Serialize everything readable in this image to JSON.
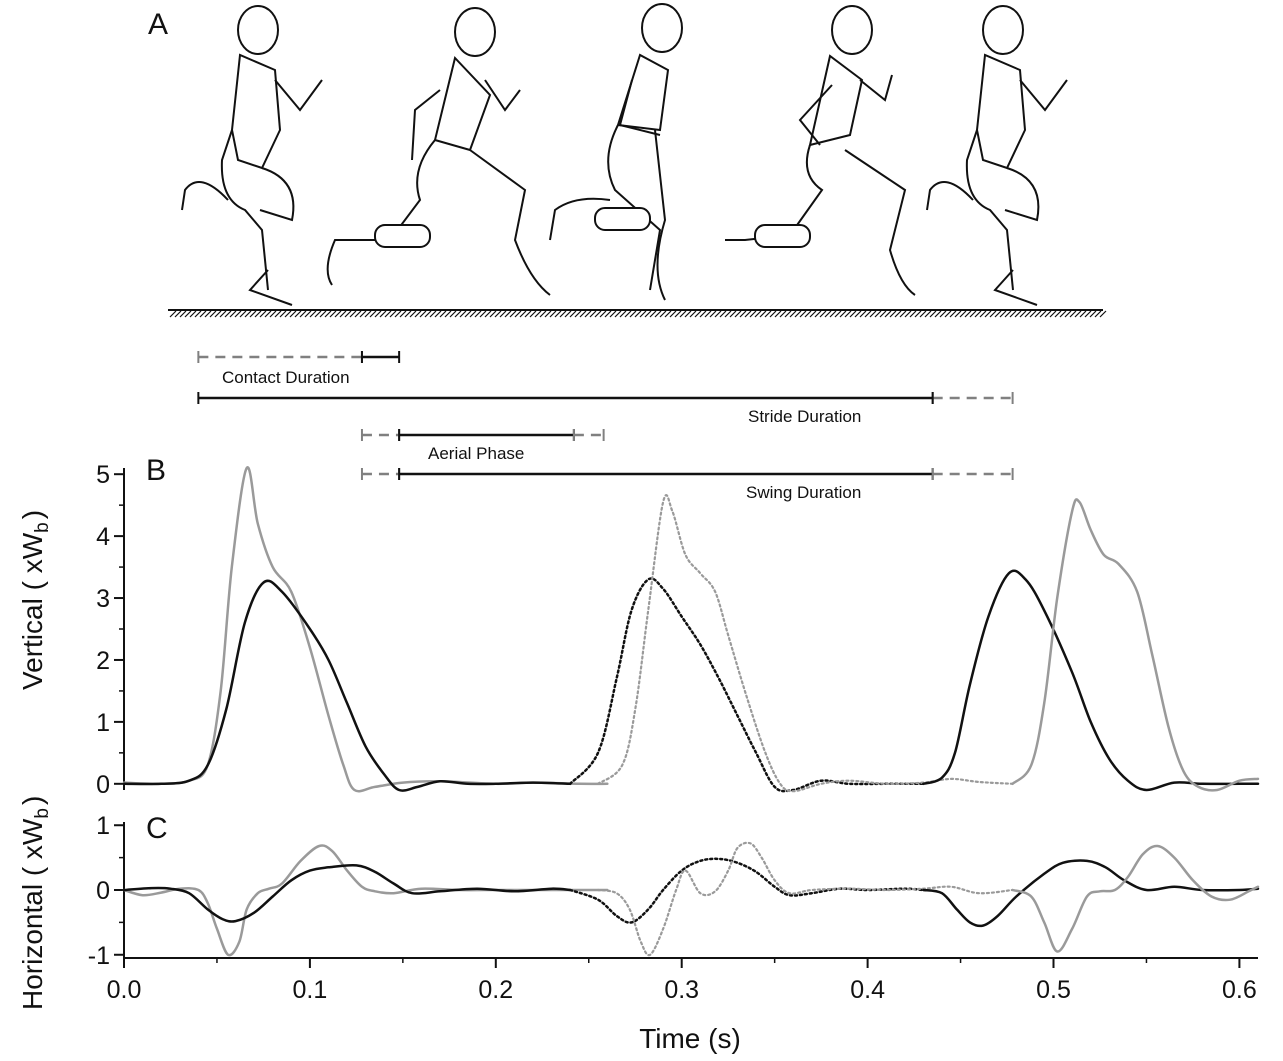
{
  "panel_labels": {
    "a": "A",
    "b": "B",
    "c": "C"
  },
  "colors": {
    "black": "#111111",
    "gray": "#9a9a9a",
    "dash_gray": "#808080"
  },
  "timing_bars": {
    "contact_label": "Contact Duration",
    "stride_label": "Stride Duration",
    "aerial_label": "Aerial Phase",
    "swing_label": "Swing Duration",
    "bars": [
      {
        "label": "Contact Duration",
        "dashed": [
          0.04,
          0.128
        ],
        "solid": [
          0.128,
          0.148
        ]
      },
      {
        "label": "Stride Duration",
        "solid": [
          0.04,
          0.435
        ],
        "dashed": [
          0.435,
          0.478
        ]
      },
      {
        "label": "Aerial Phase",
        "dashed": [
          0.128,
          0.148
        ],
        "solid": [
          0.148,
          0.242
        ],
        "dashed2": [
          0.242,
          0.258
        ]
      },
      {
        "label": "Swing Duration",
        "dashed": [
          0.128,
          0.148
        ],
        "solid": [
          0.148,
          0.435
        ],
        "dashed2": [
          0.435,
          0.478
        ]
      }
    ]
  },
  "chart_data": [
    {
      "type": "line",
      "panel": "B",
      "ylabel_main": "Vertical ( xW",
      "ylabel_sub": "b",
      "ylabel_close": ")",
      "xlim": [
        0.0,
        0.61
      ],
      "ylim": [
        -0.1,
        5.1
      ],
      "yticks": [
        0,
        1,
        2,
        3,
        4,
        5
      ],
      "series": [
        {
          "style": "gray-solid",
          "points": [
            [
              0.0,
              0.02
            ],
            [
              0.02,
              0.0
            ],
            [
              0.035,
              0.05
            ],
            [
              0.045,
              0.3
            ],
            [
              0.052,
              1.5
            ],
            [
              0.058,
              3.5
            ],
            [
              0.066,
              5.1
            ],
            [
              0.072,
              4.2
            ],
            [
              0.08,
              3.5
            ],
            [
              0.09,
              3.1
            ],
            [
              0.1,
              2.2
            ],
            [
              0.11,
              1.1
            ],
            [
              0.118,
              0.3
            ],
            [
              0.124,
              -0.1
            ],
            [
              0.135,
              -0.05
            ],
            [
              0.15,
              0.02
            ],
            [
              0.17,
              0.04
            ],
            [
              0.2,
              0.0
            ],
            [
              0.22,
              0.02
            ],
            [
              0.245,
              0.0
            ],
            [
              0.26,
              0.0
            ]
          ]
        },
        {
          "style": "black-solid",
          "points": [
            [
              0.0,
              0.0
            ],
            [
              0.02,
              0.0
            ],
            [
              0.035,
              0.05
            ],
            [
              0.045,
              0.3
            ],
            [
              0.055,
              1.2
            ],
            [
              0.065,
              2.6
            ],
            [
              0.075,
              3.25
            ],
            [
              0.085,
              3.1
            ],
            [
              0.1,
              2.5
            ],
            [
              0.11,
              2.0
            ],
            [
              0.12,
              1.3
            ],
            [
              0.13,
              0.6
            ],
            [
              0.14,
              0.15
            ],
            [
              0.148,
              -0.1
            ],
            [
              0.158,
              -0.05
            ],
            [
              0.17,
              0.04
            ],
            [
              0.185,
              0.0
            ],
            [
              0.2,
              0.0
            ],
            [
              0.22,
              0.02
            ],
            [
              0.24,
              0.0
            ]
          ]
        },
        {
          "style": "black-dotted",
          "points": [
            [
              0.24,
              0.0
            ],
            [
              0.255,
              0.5
            ],
            [
              0.265,
              1.7
            ],
            [
              0.273,
              2.8
            ],
            [
              0.282,
              3.3
            ],
            [
              0.29,
              3.15
            ],
            [
              0.3,
              2.7
            ],
            [
              0.31,
              2.25
            ],
            [
              0.32,
              1.7
            ],
            [
              0.33,
              1.1
            ],
            [
              0.34,
              0.5
            ],
            [
              0.35,
              -0.05
            ],
            [
              0.36,
              -0.1
            ],
            [
              0.375,
              0.05
            ],
            [
              0.39,
              0.0
            ],
            [
              0.41,
              0.0
            ],
            [
              0.42,
              0.0
            ],
            [
              0.43,
              0.0
            ]
          ]
        },
        {
          "style": "gray-dotted",
          "points": [
            [
              0.255,
              0.0
            ],
            [
              0.268,
              0.3
            ],
            [
              0.275,
              1.2
            ],
            [
              0.282,
              2.8
            ],
            [
              0.29,
              4.55
            ],
            [
              0.295,
              4.4
            ],
            [
              0.302,
              3.7
            ],
            [
              0.31,
              3.4
            ],
            [
              0.318,
              3.1
            ],
            [
              0.325,
              2.4
            ],
            [
              0.335,
              1.4
            ],
            [
              0.345,
              0.5
            ],
            [
              0.353,
              0.0
            ],
            [
              0.36,
              -0.12
            ],
            [
              0.375,
              0.0
            ],
            [
              0.39,
              0.05
            ],
            [
              0.41,
              0.0
            ],
            [
              0.43,
              0.02
            ],
            [
              0.445,
              0.08
            ],
            [
              0.46,
              0.03
            ],
            [
              0.478,
              0.0
            ]
          ]
        },
        {
          "style": "black-solid",
          "points": [
            [
              0.43,
              0.0
            ],
            [
              0.44,
              0.1
            ],
            [
              0.447,
              0.5
            ],
            [
              0.455,
              1.6
            ],
            [
              0.465,
              2.7
            ],
            [
              0.476,
              3.4
            ],
            [
              0.485,
              3.3
            ],
            [
              0.495,
              2.8
            ],
            [
              0.51,
              1.8
            ],
            [
              0.52,
              1.0
            ],
            [
              0.53,
              0.4
            ],
            [
              0.54,
              0.05
            ],
            [
              0.55,
              -0.1
            ],
            [
              0.565,
              0.02
            ],
            [
              0.58,
              0.0
            ],
            [
              0.6,
              0.0
            ],
            [
              0.61,
              0.0
            ]
          ]
        },
        {
          "style": "gray-solid",
          "points": [
            [
              0.478,
              0.0
            ],
            [
              0.488,
              0.3
            ],
            [
              0.495,
              1.3
            ],
            [
              0.502,
              3.0
            ],
            [
              0.51,
              4.4
            ],
            [
              0.514,
              4.55
            ],
            [
              0.52,
              4.1
            ],
            [
              0.527,
              3.7
            ],
            [
              0.535,
              3.55
            ],
            [
              0.545,
              3.1
            ],
            [
              0.553,
              2.1
            ],
            [
              0.562,
              0.9
            ],
            [
              0.57,
              0.2
            ],
            [
              0.578,
              -0.05
            ],
            [
              0.588,
              -0.1
            ],
            [
              0.6,
              0.05
            ],
            [
              0.61,
              0.08
            ]
          ]
        }
      ]
    },
    {
      "type": "line",
      "panel": "C",
      "ylabel_main": "Horizontal ( xW",
      "ylabel_sub": "b",
      "ylabel_close": ")",
      "xlabel": "Time (s)",
      "xlim": [
        0.0,
        0.61
      ],
      "ylim": [
        -1.05,
        1.05
      ],
      "yticks": [
        -1,
        0,
        1
      ],
      "xticks": [
        0.0,
        0.1,
        0.2,
        0.3,
        0.4,
        0.5,
        0.6
      ],
      "xticklabels": [
        "0.0",
        "0.1",
        "0.2",
        "0.3",
        "0.4",
        "0.5",
        "0.6"
      ],
      "series": [
        {
          "style": "gray-solid",
          "points": [
            [
              0.0,
              0.0
            ],
            [
              0.01,
              -0.08
            ],
            [
              0.02,
              -0.04
            ],
            [
              0.03,
              0.02
            ],
            [
              0.04,
              0.0
            ],
            [
              0.045,
              -0.2
            ],
            [
              0.05,
              -0.6
            ],
            [
              0.056,
              -1.0
            ],
            [
              0.062,
              -0.8
            ],
            [
              0.066,
              -0.3
            ],
            [
              0.072,
              -0.05
            ],
            [
              0.078,
              0.02
            ],
            [
              0.085,
              0.1
            ],
            [
              0.095,
              0.45
            ],
            [
              0.105,
              0.68
            ],
            [
              0.112,
              0.6
            ],
            [
              0.12,
              0.3
            ],
            [
              0.128,
              0.05
            ],
            [
              0.135,
              -0.02
            ],
            [
              0.145,
              -0.05
            ],
            [
              0.16,
              0.02
            ],
            [
              0.18,
              0.0
            ],
            [
              0.2,
              0.0
            ],
            [
              0.22,
              0.0
            ],
            [
              0.25,
              0.0
            ],
            [
              0.26,
              0.0
            ]
          ]
        },
        {
          "style": "black-solid",
          "points": [
            [
              0.0,
              0.0
            ],
            [
              0.015,
              0.03
            ],
            [
              0.025,
              0.02
            ],
            [
              0.035,
              -0.05
            ],
            [
              0.045,
              -0.3
            ],
            [
              0.053,
              -0.45
            ],
            [
              0.06,
              -0.48
            ],
            [
              0.07,
              -0.35
            ],
            [
              0.08,
              -0.1
            ],
            [
              0.09,
              0.15
            ],
            [
              0.1,
              0.3
            ],
            [
              0.11,
              0.35
            ],
            [
              0.125,
              0.38
            ],
            [
              0.135,
              0.28
            ],
            [
              0.145,
              0.1
            ],
            [
              0.155,
              -0.05
            ],
            [
              0.17,
              -0.02
            ],
            [
              0.19,
              0.02
            ],
            [
              0.21,
              -0.02
            ],
            [
              0.23,
              0.02
            ],
            [
              0.24,
              0.0
            ]
          ]
        },
        {
          "style": "black-dotted",
          "points": [
            [
              0.24,
              0.0
            ],
            [
              0.255,
              -0.15
            ],
            [
              0.265,
              -0.4
            ],
            [
              0.273,
              -0.5
            ],
            [
              0.282,
              -0.3
            ],
            [
              0.29,
              0.0
            ],
            [
              0.3,
              0.3
            ],
            [
              0.31,
              0.45
            ],
            [
              0.32,
              0.48
            ],
            [
              0.33,
              0.42
            ],
            [
              0.34,
              0.28
            ],
            [
              0.35,
              0.05
            ],
            [
              0.358,
              -0.08
            ],
            [
              0.37,
              -0.05
            ],
            [
              0.385,
              0.02
            ],
            [
              0.4,
              0.0
            ],
            [
              0.42,
              0.02
            ],
            [
              0.43,
              0.0
            ]
          ]
        },
        {
          "style": "gray-dotted",
          "points": [
            [
              0.255,
              0.0
            ],
            [
              0.265,
              -0.05
            ],
            [
              0.272,
              -0.3
            ],
            [
              0.278,
              -0.8
            ],
            [
              0.283,
              -1.0
            ],
            [
              0.29,
              -0.6
            ],
            [
              0.297,
              0.0
            ],
            [
              0.302,
              0.3
            ],
            [
              0.31,
              -0.05
            ],
            [
              0.318,
              -0.02
            ],
            [
              0.325,
              0.3
            ],
            [
              0.33,
              0.65
            ],
            [
              0.337,
              0.72
            ],
            [
              0.343,
              0.5
            ],
            [
              0.35,
              0.15
            ],
            [
              0.358,
              -0.05
            ],
            [
              0.37,
              0.0
            ],
            [
              0.39,
              0.02
            ],
            [
              0.41,
              0.0
            ],
            [
              0.43,
              0.02
            ],
            [
              0.445,
              0.05
            ],
            [
              0.46,
              -0.05
            ],
            [
              0.478,
              0.0
            ]
          ]
        },
        {
          "style": "black-solid",
          "points": [
            [
              0.43,
              0.0
            ],
            [
              0.44,
              -0.05
            ],
            [
              0.448,
              -0.3
            ],
            [
              0.455,
              -0.5
            ],
            [
              0.462,
              -0.55
            ],
            [
              0.47,
              -0.4
            ],
            [
              0.48,
              -0.1
            ],
            [
              0.495,
              0.25
            ],
            [
              0.505,
              0.42
            ],
            [
              0.518,
              0.45
            ],
            [
              0.528,
              0.35
            ],
            [
              0.538,
              0.15
            ],
            [
              0.55,
              0.0
            ],
            [
              0.565,
              0.05
            ],
            [
              0.58,
              0.0
            ],
            [
              0.6,
              0.0
            ],
            [
              0.61,
              0.02
            ]
          ]
        },
        {
          "style": "gray-solid",
          "points": [
            [
              0.478,
              0.0
            ],
            [
              0.488,
              -0.1
            ],
            [
              0.495,
              -0.5
            ],
            [
              0.502,
              -0.95
            ],
            [
              0.51,
              -0.6
            ],
            [
              0.518,
              -0.1
            ],
            [
              0.525,
              -0.02
            ],
            [
              0.533,
              0.0
            ],
            [
              0.54,
              0.2
            ],
            [
              0.548,
              0.55
            ],
            [
              0.556,
              0.68
            ],
            [
              0.565,
              0.5
            ],
            [
              0.575,
              0.15
            ],
            [
              0.585,
              -0.1
            ],
            [
              0.595,
              -0.15
            ],
            [
              0.605,
              -0.02
            ],
            [
              0.61,
              0.05
            ]
          ]
        }
      ]
    }
  ]
}
